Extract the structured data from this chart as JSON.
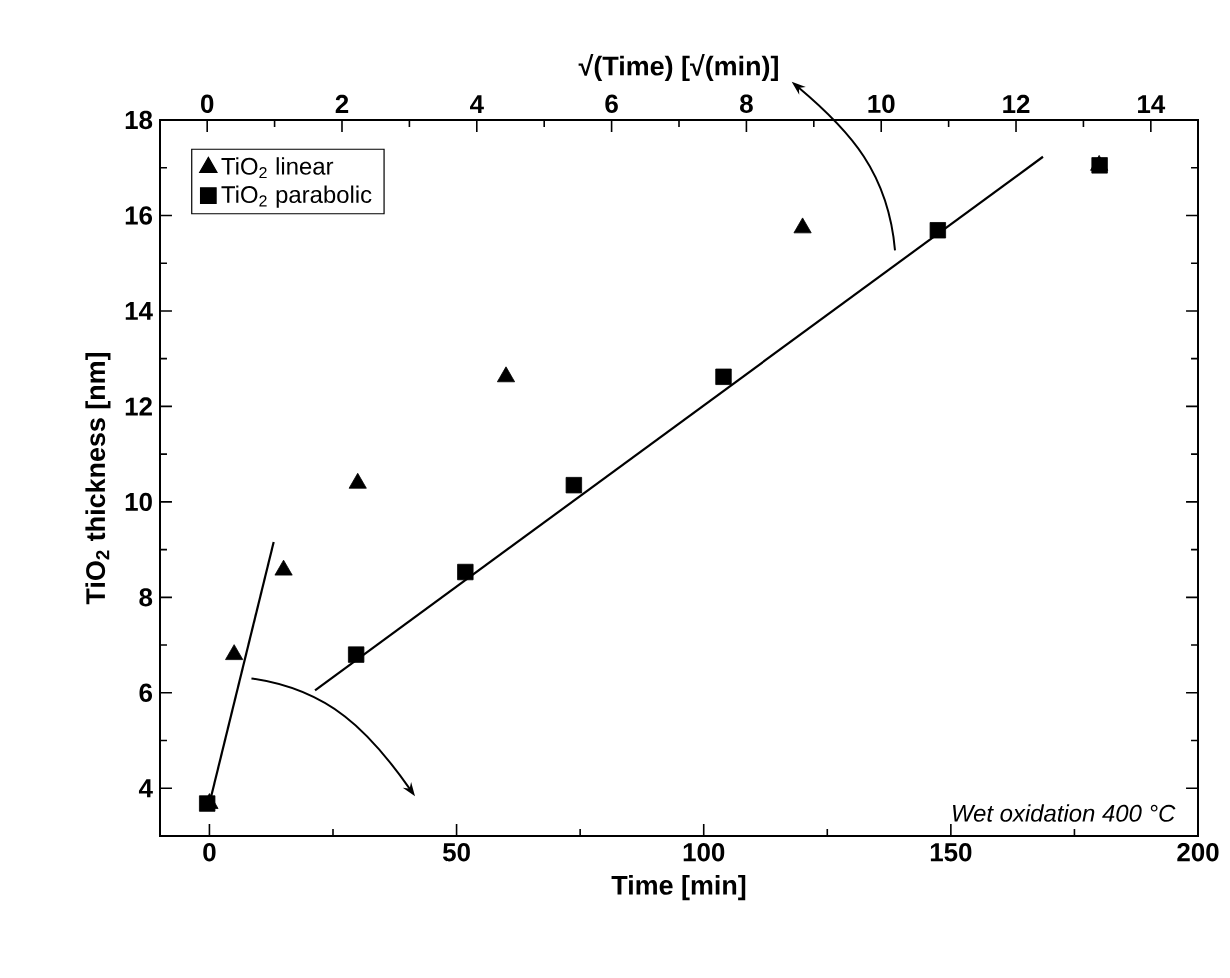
{
  "chart_data": {
    "type": "scatter",
    "xlabel": "Time [min]",
    "x2label": "√(Time) [√(min)]",
    "ylabel": "TiO$_{2}$ thickness [nm]",
    "xlim": [
      -10,
      200
    ],
    "xticks": [
      0,
      50,
      100,
      150,
      200
    ],
    "x2lim": [
      -0.7,
      14.7
    ],
    "x2ticks": [
      0,
      2,
      4,
      6,
      8,
      10,
      12,
      14
    ],
    "ylim": [
      3,
      18
    ],
    "yticks": [
      4,
      6,
      8,
      10,
      12,
      14,
      16,
      18
    ],
    "legend": "top left",
    "annotations": [
      "Wet oxidation 400 °C"
    ],
    "series": [
      {
        "name": "TiO$_{2}$ linear",
        "type": "scatter",
        "marker": "triangle",
        "color": "#000000",
        "x": [
          0,
          5,
          15,
          30,
          60,
          120,
          180
        ],
        "values": [
          3.68,
          6.8,
          8.57,
          10.39,
          12.62,
          15.74,
          17.05
        ]
      },
      {
        "name": "TiO$_{2}$ parabolic",
        "type": "scatter",
        "marker": "square",
        "color": "#000000",
        "axis": "x2",
        "x": [
          0,
          2.21,
          3.83,
          5.44,
          7.66,
          10.84,
          13.24
        ],
        "values": [
          3.68,
          6.8,
          8.53,
          10.35,
          12.62,
          15.69,
          17.05
        ]
      },
      {
        "type": "line",
        "color": "#000000",
        "x": [
          0,
          13
        ],
        "values": [
          3.68,
          9.16
        ]
      },
      {
        "type": "line",
        "color": "#000000",
        "axis": "x2",
        "x": [
          1.6,
          12.4
        ],
        "values": [
          6.05,
          17.23
        ]
      }
    ]
  }
}
